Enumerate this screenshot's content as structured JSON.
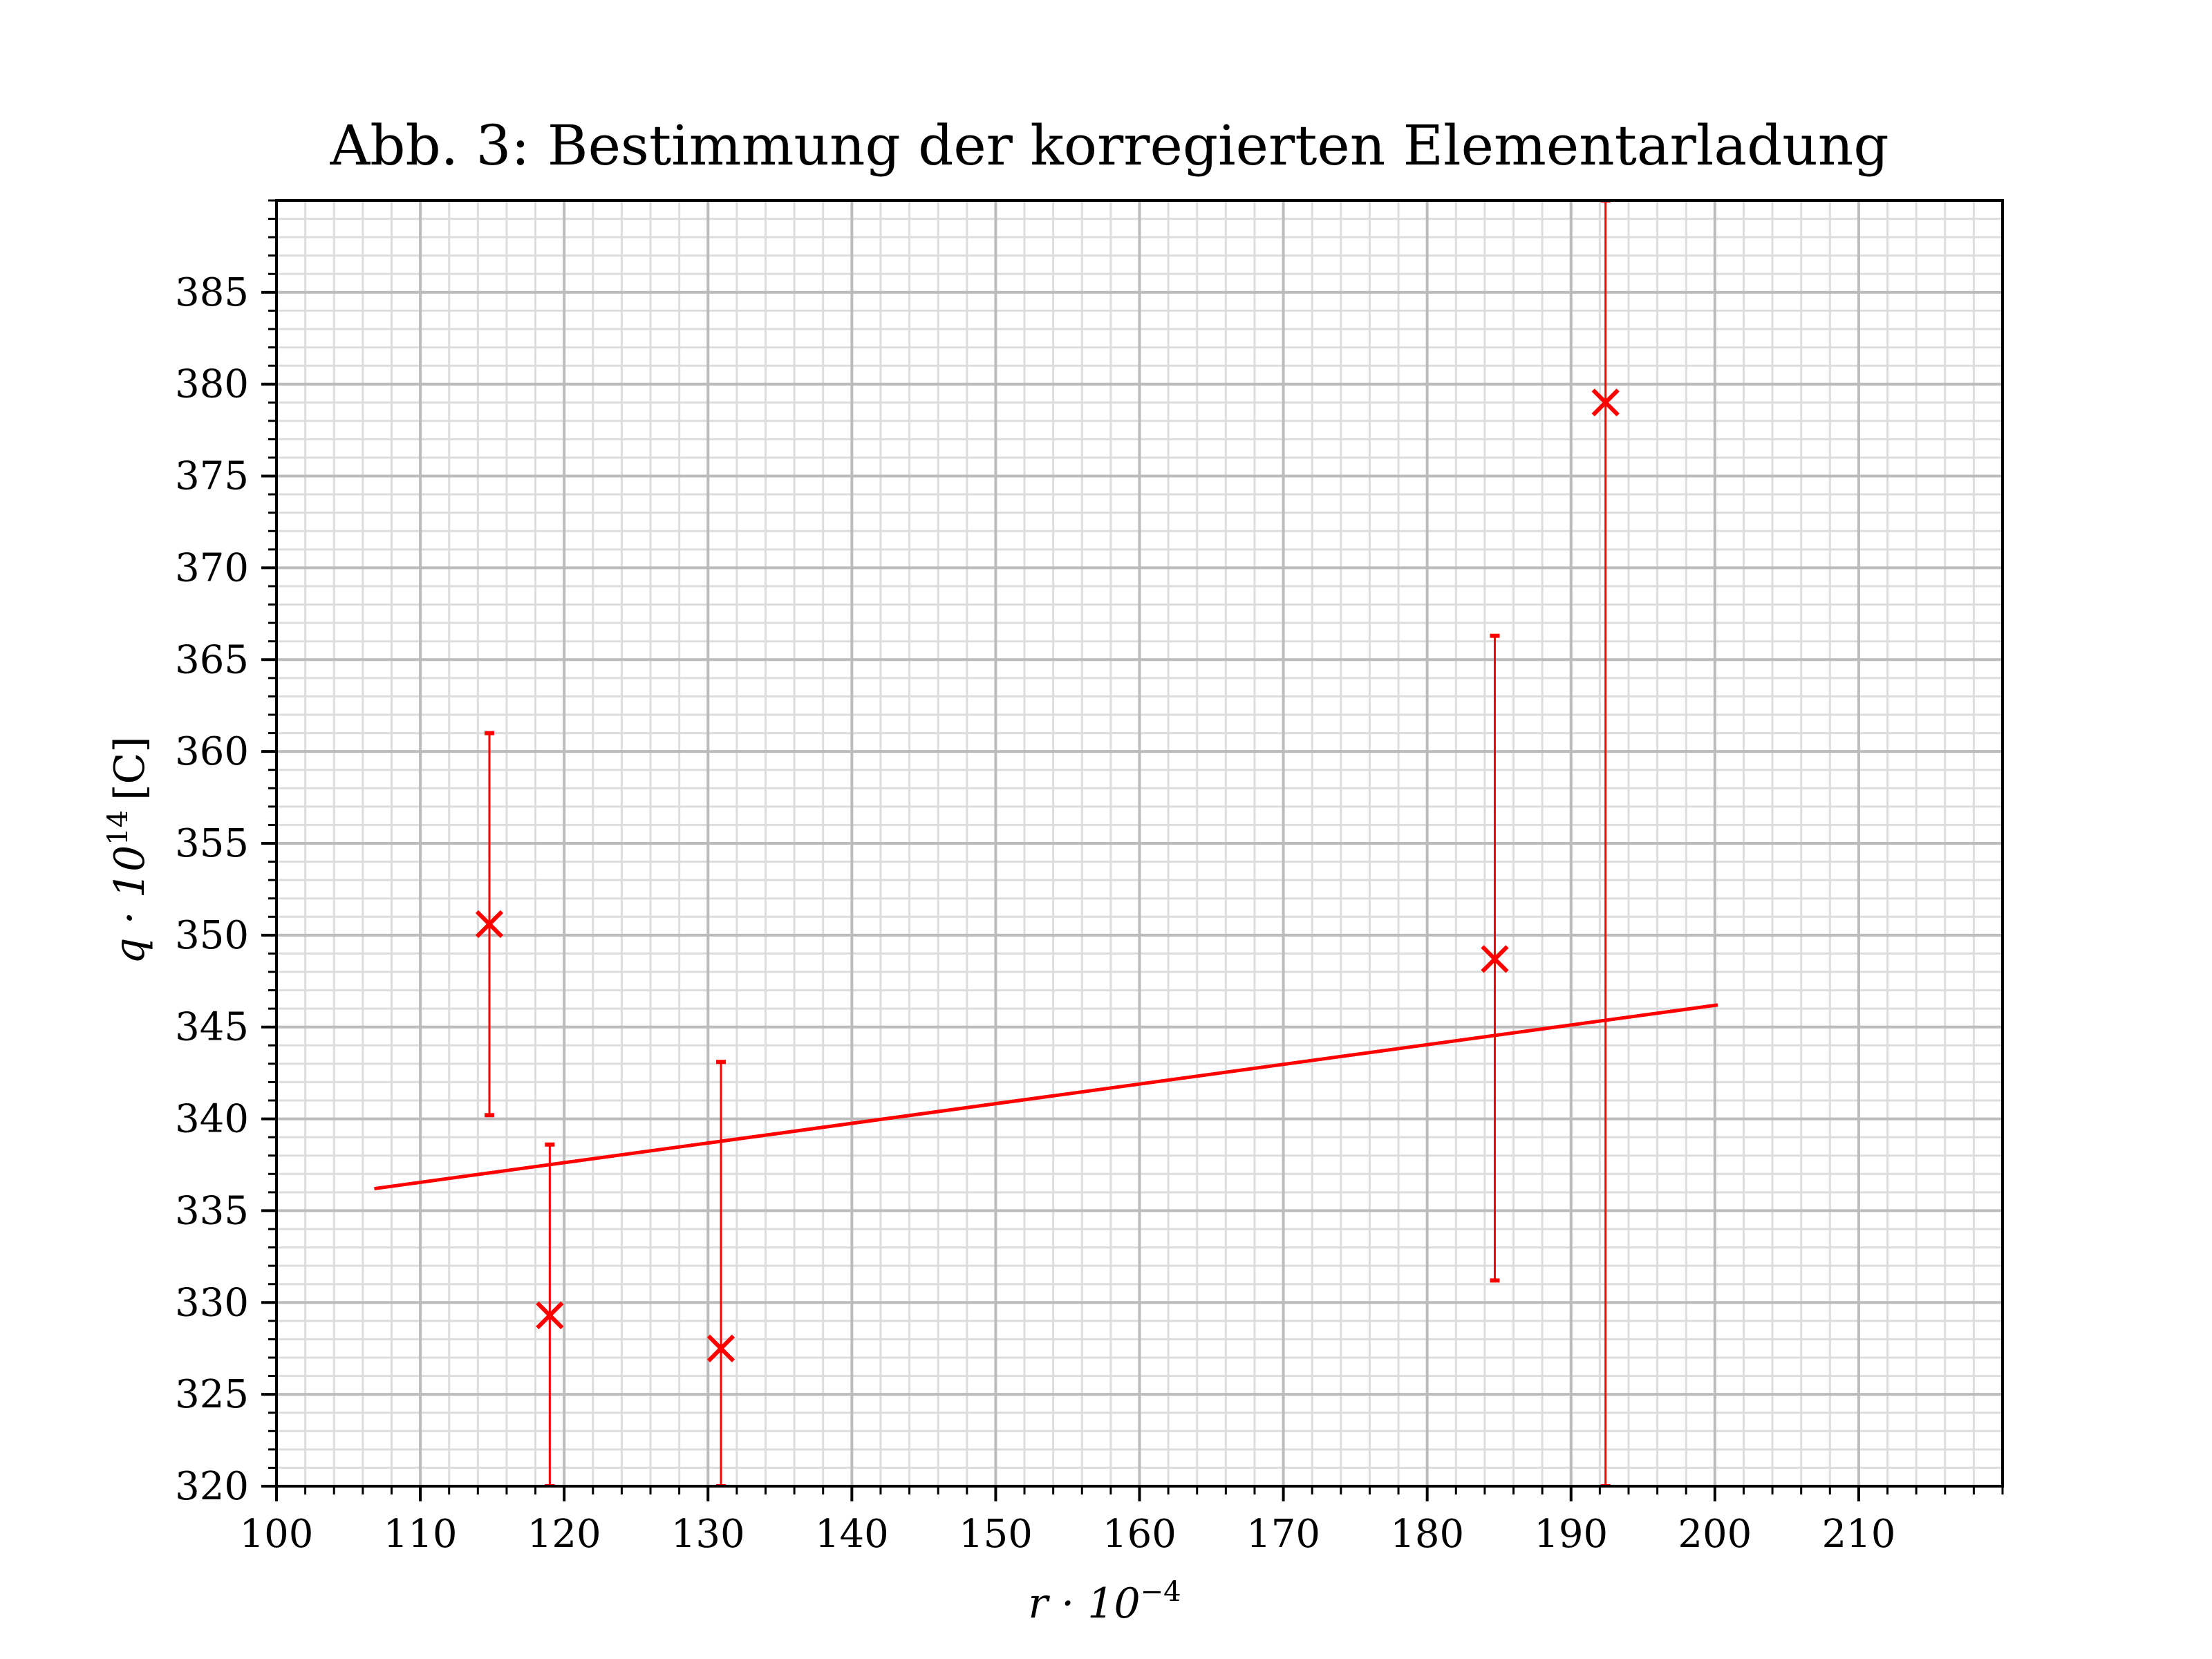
{
  "chart_data": {
    "type": "scatter",
    "title": "Abb. 3: Bestimmung der korregierten Elementarladung",
    "xlabel": "r · 10",
    "xlabel_exponent": "−4",
    "ylabel": "q · 10",
    "ylabel_exponent": "14",
    "ylabel_unit": "[C]",
    "xlim": [
      100,
      220
    ],
    "ylim": [
      320,
      390
    ],
    "x_major_ticks": [
      100,
      110,
      120,
      130,
      140,
      150,
      160,
      170,
      180,
      190,
      200,
      210
    ],
    "x_minor_step": 2,
    "y_major_ticks": [
      320,
      325,
      330,
      335,
      340,
      345,
      350,
      355,
      360,
      365,
      370,
      375,
      380,
      385
    ],
    "y_minor_step": 1,
    "grid": true,
    "series": [
      {
        "kind": "errorbar",
        "marker": "x",
        "color": "#ff0000",
        "points": [
          {
            "x": 114.8,
            "y": 350.6,
            "yerr_low": 340.2,
            "yerr_high": 361.0
          },
          {
            "x": 119.0,
            "y": 329.3,
            "yerr_low": 320.0,
            "yerr_high": 338.6
          },
          {
            "x": 130.9,
            "y": 327.5,
            "yerr_low": 320.0,
            "yerr_high": 343.1
          },
          {
            "x": 184.7,
            "y": 348.7,
            "yerr_low": 331.2,
            "yerr_high": 366.3
          },
          {
            "x": 192.4,
            "y": 379.0,
            "yerr_low": 320.0,
            "yerr_high": 390.0
          }
        ]
      },
      {
        "kind": "fit-line",
        "color": "#ff0000",
        "x": [
          106.8,
          200.2
        ],
        "y": [
          336.2,
          346.2
        ]
      }
    ]
  }
}
